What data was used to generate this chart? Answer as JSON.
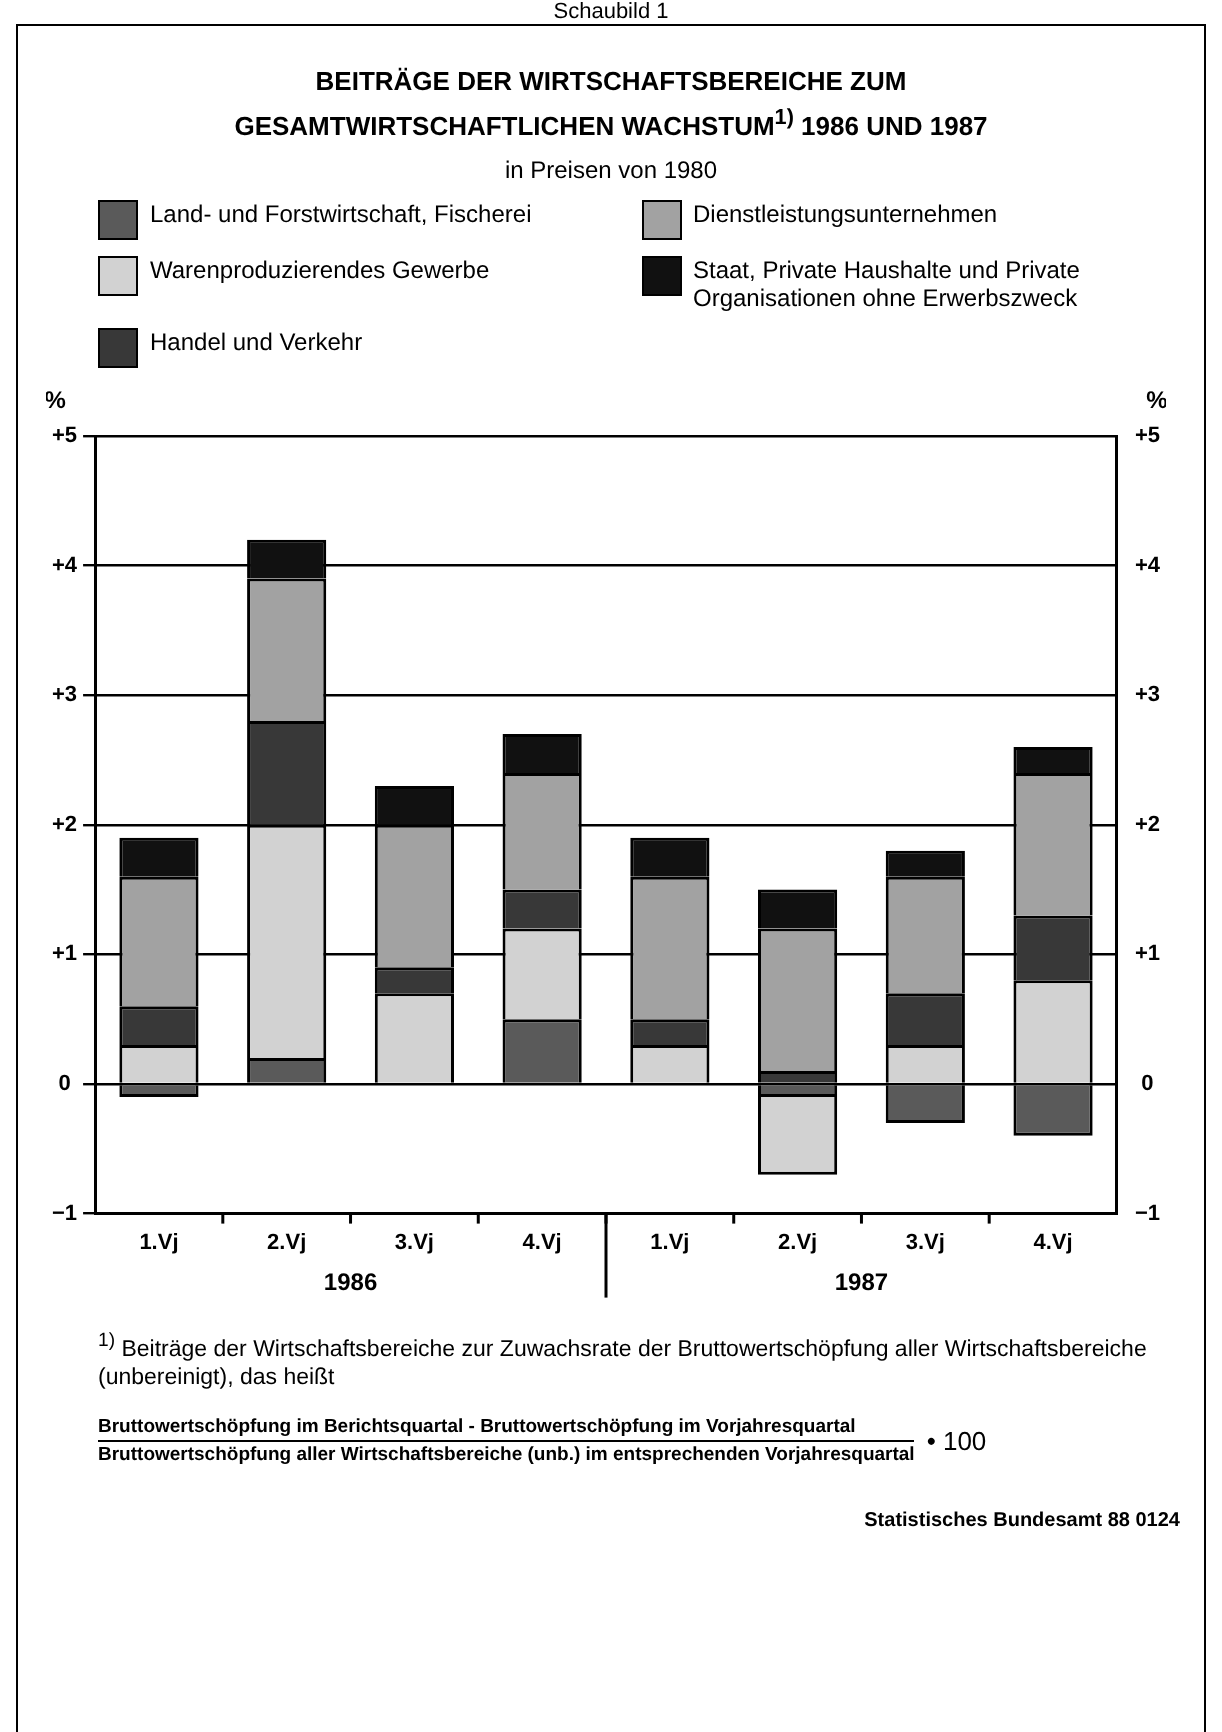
{
  "chart_data": {
    "type": "bar",
    "title": "BEITRÄGE DER WIRTSCHAFTSBEREICHE ZUM GESAMTWIRTSCHAFTLICHEN WACHSTUM$^{1)}$ 1986 UND 1987",
    "subtitle": "in Preisen von 1980",
    "categories": [
      "1.Vj",
      "2.Vj",
      "3.Vj",
      "4.Vj",
      "1.Vj",
      "2.Vj",
      "3.Vj",
      "4.Vj"
    ],
    "stacked": true,
    "series": [
      {
        "name": "Land- und Forstwirtschaft, Fischerei",
        "color": "#5a5a5a",
        "values": [
          -0.1,
          0.2,
          0,
          0.5,
          0,
          -0.1,
          -0.3,
          -0.4
        ]
      },
      {
        "name": "Warenproduzierendes Gewerbe",
        "color": "#d2d2d2",
        "values": [
          0.3,
          1.8,
          0.7,
          0.7,
          0.3,
          -0.6,
          0.3,
          0.8
        ]
      },
      {
        "name": "Handel und Verkehr",
        "color": "#383838",
        "values": [
          0.3,
          0.8,
          0.2,
          0.3,
          0.2,
          0.1,
          0.4,
          0.5
        ]
      },
      {
        "name": "Dienstleistungsunternehmen",
        "color": "#a2a2a2",
        "values": [
          1.0,
          1.1,
          1.1,
          0.9,
          1.1,
          1.1,
          0.9,
          1.1
        ]
      },
      {
        "name": "Staat, Private Haushalte und Private Organisationen ohne Erwerbszweck",
        "color": "#111111",
        "values": [
          0.3,
          0.3,
          0.3,
          0.3,
          0.3,
          0.3,
          0.2,
          0.2
        ]
      }
    ],
    "ylabel": "%",
    "y2label": "%",
    "ylim": [
      -1,
      5
    ],
    "yticks": [
      {
        "value": -1,
        "label": "−1"
      },
      0,
      {
        "value": 1,
        "label": "+1"
      },
      {
        "value": 2,
        "label": "+2"
      },
      {
        "value": 3,
        "label": "+3"
      },
      {
        "value": 4,
        "label": "+4"
      },
      {
        "value": 5,
        "label": "+5"
      }
    ],
    "y2lim": [
      -1,
      5
    ],
    "y2ticks": [
      {
        "value": -1,
        "label": "−1"
      },
      0,
      {
        "value": 1,
        "label": "+1"
      },
      {
        "value": 2,
        "label": "+2"
      },
      {
        "value": 3,
        "label": "+3"
      },
      {
        "value": 4,
        "label": "+4"
      },
      {
        "value": 5,
        "label": "+5"
      }
    ],
    "grid": "y",
    "legend": "top",
    "annotations": [
      "Schaubild 1",
      "1986",
      "1987",
      "$^{1)}$ Beiträge der Wirtschaftsbereiche zur Zuwachsrate der Bruttowertschöpfung aller Wirtschaftsbereiche (unbereinigt), das heißt",
      "Bruttowertschöpfung im Berichtsquartal - Bruttowertschöpfung im Vorjahresquartal",
      "Bruttowertschöpfung aller Wirtschaftsbereiche (unb.) im entsprechenden Vorjahresquartal",
      "• 100",
      "Statistisches Bundesamt 88 0124"
    ]
  }
}
